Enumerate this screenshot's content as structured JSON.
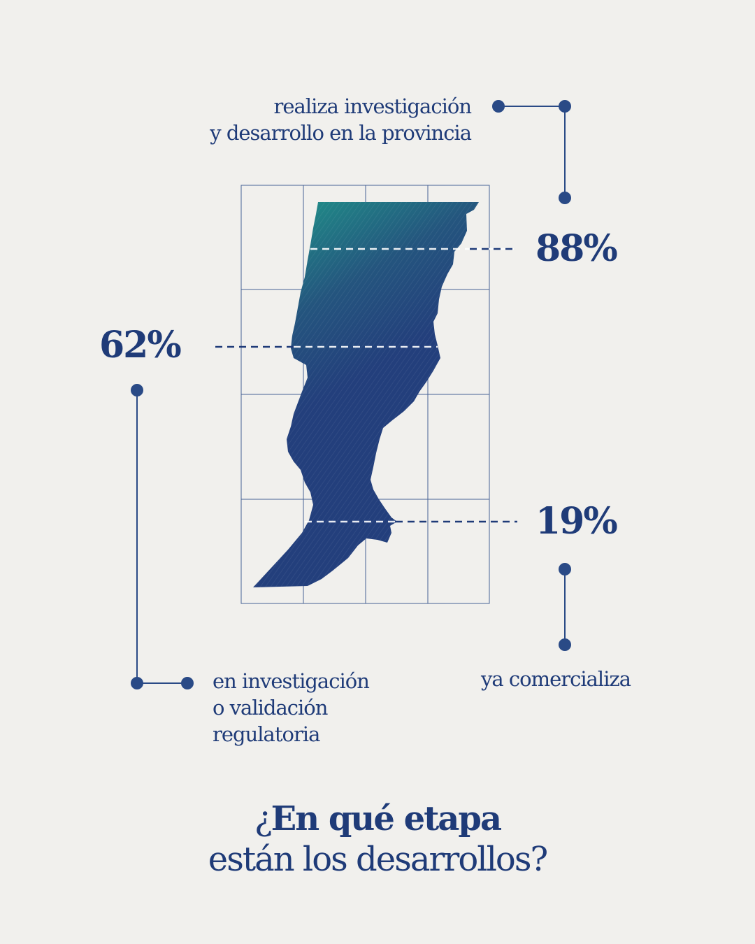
{
  "colors": {
    "background": "#f1f0ed",
    "primary": "#1f3b78",
    "accent_teal": "#1f9a8a"
  },
  "stats": [
    {
      "id": "rd",
      "value": "88%",
      "label_lines": [
        "realiza investigación",
        "y desarrollo en la provincia"
      ]
    },
    {
      "id": "research",
      "value": "62%",
      "label_lines": [
        "en investigación",
        "o validación",
        "regulatoria"
      ]
    },
    {
      "id": "commercial",
      "value": "19%",
      "label_lines": [
        "ya comercializa"
      ]
    }
  ],
  "title": {
    "line1_prefix": "¿",
    "line1_bold": "En qué etapa",
    "line2": "están los desarrollos?"
  },
  "map": {
    "region_icon": "santa-fe-province-map-icon",
    "grid_columns": 4,
    "grid_rows": 4
  }
}
